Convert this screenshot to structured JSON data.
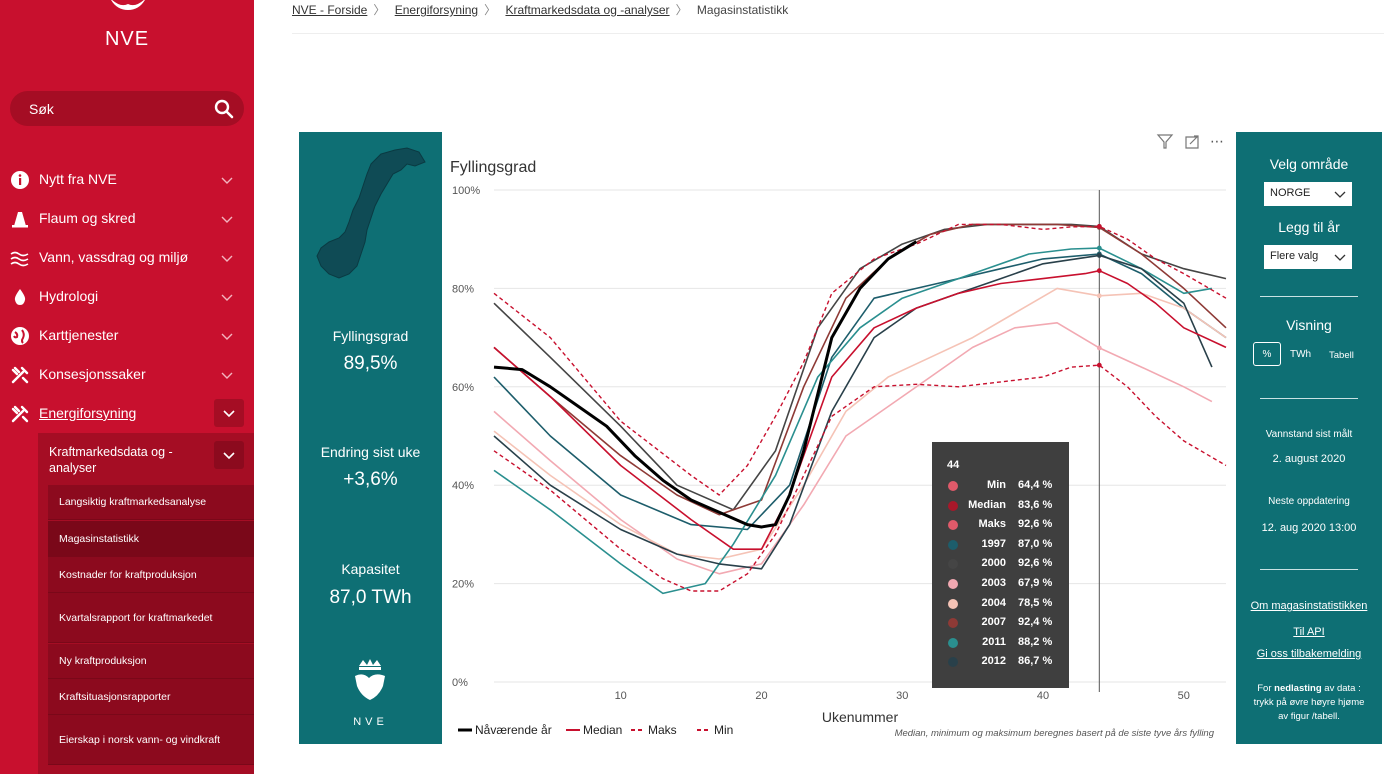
{
  "sidebar": {
    "logo_text": "NVE",
    "search_placeholder": "Søk",
    "items": [
      {
        "label": "Nytt fra NVE",
        "icon": "info-icon"
      },
      {
        "label": "Flaum og skred",
        "icon": "cone-icon"
      },
      {
        "label": "Vann, vassdrag og miljø",
        "icon": "waves-icon"
      },
      {
        "label": "Hydrologi",
        "icon": "drop-icon"
      },
      {
        "label": "Karttjenester",
        "icon": "globe-icon"
      },
      {
        "label": "Konsesjonssaker",
        "icon": "tools-icon"
      },
      {
        "label": "Energiforsyning",
        "icon": "tools-icon"
      }
    ],
    "sub_section": "Kraftmarkedsdata og -analyser",
    "sub_items": [
      "Langsiktig kraftmarkedsanalyse",
      "Magasinstatistikk",
      "Kostnader for kraftproduksjon",
      "Kvartalsrapport for kraftmarkedet",
      "Ny kraftproduksjon",
      "Kraftsituasjonsrapporter",
      "Eierskap i norsk vann- og vindkraft"
    ]
  },
  "breadcrumb": [
    "NVE - Forside",
    "Energiforsyning",
    "Kraftmarkedsdata og -analyser",
    "Magasinstatistikk"
  ],
  "kpis": {
    "fill_title": "Fyllingsgrad",
    "fill_value": "89,5%",
    "change_title": "Endring sist uke",
    "change_value": "+3,6%",
    "capacity_title": "Kapasitet",
    "capacity_value": "87,0 TWh",
    "logo_text": "NVE"
  },
  "controls": {
    "area_title": "Velg område",
    "area_value": "NORGE",
    "year_title": "Legg til år",
    "year_value": "Flere valg",
    "view_title": "Visning",
    "view_options": [
      "%",
      "TWh",
      "Tabell"
    ],
    "measured_label": "Vannstand sist målt",
    "measured_value": "2. august 2020",
    "next_label": "Neste oppdatering",
    "next_value": "12. aug 2020 13:00",
    "links": [
      "Om magasinstatistikken",
      "Til API",
      "Gi oss tilbakemelding"
    ],
    "download_prefix": "For ",
    "download_bold": "nedlasting",
    "download_rest": " av data : trykk på øvre høyre hjøme av figur /tabell."
  },
  "tooltip": {
    "week": "44",
    "rows": [
      {
        "name": "Min",
        "value": "64,4 %",
        "color": "#e05a6a"
      },
      {
        "name": "Median",
        "value": "83,6 %",
        "color": "#a8182a"
      },
      {
        "name": "Maks",
        "value": "92,6 %",
        "color": "#e05a6a"
      },
      {
        "name": "1997",
        "value": "87,0 %",
        "color": "#1d5d6b"
      },
      {
        "name": "2000",
        "value": "92,6 %",
        "color": "#454545"
      },
      {
        "name": "2003",
        "value": "67,9 %",
        "color": "#f2a9b2"
      },
      {
        "name": "2004",
        "value": "78,5 %",
        "color": "#f5c3b6"
      },
      {
        "name": "2007",
        "value": "92,4 %",
        "color": "#8e3a36"
      },
      {
        "name": "2011",
        "value": "88,2 %",
        "color": "#2a8f8f"
      },
      {
        "name": "2012",
        "value": "86,7 %",
        "color": "#29404a"
      }
    ]
  },
  "chart_data": {
    "type": "line",
    "title": "Fyllingsgrad",
    "xlabel": "Ukenummer",
    "ylabel": "",
    "xlim": [
      1,
      53
    ],
    "ylim": [
      0,
      100
    ],
    "x_ticks": [
      10,
      20,
      30,
      40,
      50
    ],
    "y_ticks": [
      "0%",
      "20%",
      "40%",
      "60%",
      "80%",
      "100%"
    ],
    "note": "Median, minimum og maksimum beregnes basert på de siste tyve års fylling",
    "legend": [
      "Nåværende år",
      "Median",
      "Maks",
      "Min"
    ],
    "cursor_week": 44,
    "series": [
      {
        "name": "Nåværende år",
        "color": "#000000",
        "style": "current",
        "x": [
          1,
          3,
          5,
          7,
          9,
          11,
          13,
          15,
          17,
          19,
          20,
          21,
          22,
          23,
          25,
          27,
          29,
          31
        ],
        "y": [
          64,
          63.5,
          60,
          56,
          52,
          46,
          41,
          37,
          34.5,
          32,
          31.5,
          32,
          38,
          47,
          70,
          80,
          86,
          89.5
        ]
      },
      {
        "name": "Median",
        "color": "#c8102e",
        "style": "median",
        "x": [
          1,
          5,
          10,
          15,
          18,
          20,
          22,
          25,
          28,
          31,
          34,
          37,
          40,
          43,
          44,
          46,
          48,
          50,
          53
        ],
        "y": [
          68,
          58,
          44,
          33,
          27,
          27,
          38,
          62,
          72,
          76,
          79,
          81,
          82,
          83,
          83.6,
          81,
          77,
          72,
          68
        ]
      },
      {
        "name": "Maks",
        "color": "#c8102e",
        "style": "maks",
        "x": [
          1,
          5,
          10,
          15,
          17,
          19,
          21,
          23,
          25,
          28,
          31,
          34,
          37,
          40,
          42,
          44,
          46,
          48,
          50,
          53
        ],
        "y": [
          79,
          70,
          53,
          42,
          38,
          44,
          54,
          65,
          79,
          86,
          89,
          93,
          93,
          92,
          92.5,
          92.6,
          90,
          86,
          83,
          78
        ]
      },
      {
        "name": "Min",
        "color": "#c8102e",
        "style": "min",
        "x": [
          1,
          5,
          10,
          13,
          15,
          17,
          19,
          21,
          23,
          25,
          28,
          31,
          34,
          37,
          40,
          42,
          44,
          46,
          48,
          50,
          53
        ],
        "y": [
          47,
          39,
          27,
          21,
          18.5,
          18.5,
          22,
          30,
          42,
          54,
          60,
          60.5,
          60,
          61,
          62,
          64,
          64.4,
          60,
          54,
          49,
          44
        ]
      },
      {
        "name": "1997",
        "color": "#1d5d6b",
        "style": "year",
        "x": [
          1,
          5,
          10,
          15,
          19,
          22,
          25,
          28,
          31,
          34,
          37,
          40,
          44,
          47,
          50,
          53
        ],
        "y": [
          62,
          50,
          38,
          32,
          31,
          40,
          66,
          78,
          80,
          82,
          84,
          86,
          87,
          83,
          76,
          70
        ]
      },
      {
        "name": "2000",
        "color": "#454545",
        "style": "year",
        "x": [
          1,
          5,
          10,
          14,
          18,
          21,
          24,
          27,
          30,
          33,
          36,
          39,
          42,
          44,
          47,
          50,
          53
        ],
        "y": [
          77,
          66,
          52,
          40,
          35,
          47,
          72,
          84,
          89,
          92,
          93,
          93,
          93,
          92.6,
          87,
          84,
          82
        ]
      },
      {
        "name": "2003",
        "color": "#f2a9b2",
        "style": "year",
        "x": [
          1,
          5,
          10,
          14,
          17,
          20,
          23,
          26,
          29,
          32,
          35,
          38,
          41,
          44,
          47,
          50,
          52
        ],
        "y": [
          55,
          45,
          33,
          25,
          22,
          24,
          36,
          50,
          56,
          62,
          68,
          72,
          73,
          67.9,
          64,
          60,
          57
        ]
      },
      {
        "name": "2004",
        "color": "#f5c3b6",
        "style": "year",
        "x": [
          1,
          5,
          10,
          14,
          17,
          20,
          23,
          26,
          29,
          32,
          35,
          38,
          41,
          44,
          47,
          50,
          53
        ],
        "y": [
          51,
          42,
          32,
          26,
          25,
          27,
          40,
          55,
          62,
          66,
          70,
          75,
          80,
          78.5,
          79,
          76,
          70
        ]
      },
      {
        "name": "2007",
        "color": "#8e3a36",
        "style": "year",
        "x": [
          1,
          5,
          10,
          14,
          17,
          20,
          23,
          26,
          29,
          32,
          35,
          38,
          41,
          44,
          47,
          50,
          53
        ],
        "y": [
          68,
          58,
          46,
          38,
          34,
          37,
          60,
          78,
          86,
          91,
          93,
          93,
          93,
          92.4,
          87,
          80,
          72
        ]
      },
      {
        "name": "2011",
        "color": "#2a8f8f",
        "style": "year",
        "x": [
          1,
          5,
          10,
          13,
          16,
          18,
          21,
          24,
          27,
          30,
          33,
          36,
          39,
          42,
          44,
          47,
          50,
          52
        ],
        "y": [
          43,
          35,
          24,
          18,
          20,
          28,
          42,
          62,
          72,
          78,
          81,
          84,
          87,
          88,
          88.2,
          84,
          79,
          80
        ]
      },
      {
        "name": "2012",
        "color": "#29404a",
        "style": "year",
        "x": [
          1,
          5,
          10,
          14,
          17,
          20,
          22,
          25,
          28,
          31,
          34,
          37,
          40,
          44,
          47,
          50,
          52
        ],
        "y": [
          50,
          40,
          31,
          26,
          24,
          23,
          32,
          55,
          70,
          76,
          79,
          82,
          85,
          86.7,
          84,
          77,
          64
        ]
      }
    ]
  }
}
